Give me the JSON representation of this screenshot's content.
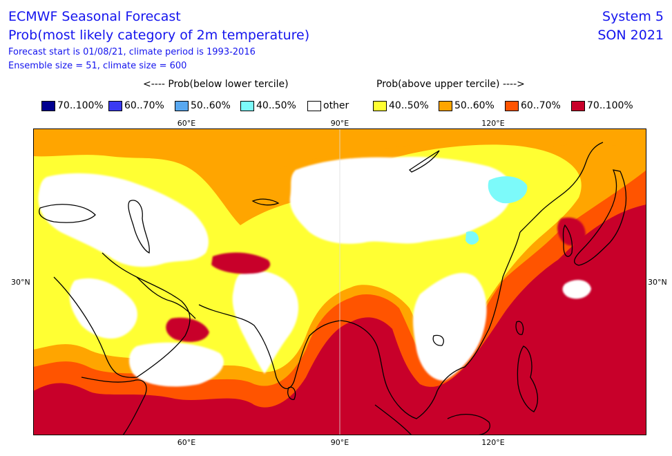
{
  "header": {
    "title": "ECMWF Seasonal Forecast",
    "subtitle": "Prob(most likely category of 2m temperature)",
    "forecast_info": "Forecast start is 01/08/21, climate period is 1993-2016",
    "ensemble_info": "Ensemble size = 51, climate size = 600",
    "system": "System 5",
    "season": "SON 2021"
  },
  "tercile_labels": {
    "below": "<---- Prob(below lower tercile)",
    "above": "Prob(above upper tercile) ---->"
  },
  "legend": [
    {
      "label": "70..100%",
      "color": "#00008f"
    },
    {
      "label": "60..70%",
      "color": "#3a3af2"
    },
    {
      "label": "50..60%",
      "color": "#59a8f0"
    },
    {
      "label": "40..50%",
      "color": "#7cfafa"
    },
    {
      "label": "other",
      "color": "#ffffff"
    },
    {
      "label": "40..50%",
      "color": "#ffff33"
    },
    {
      "label": "50..60%",
      "color": "#ffa500"
    },
    {
      "label": "60..70%",
      "color": "#ff5400"
    },
    {
      "label": "70..100%",
      "color": "#c8002a"
    }
  ],
  "axes": {
    "lon_labels": [
      "60°E",
      "90°E",
      "120°E"
    ],
    "lat_labels": [
      "30°N"
    ]
  },
  "map": {
    "lon_range": [
      30,
      150
    ],
    "lat_range": [
      0,
      60
    ],
    "central_meridian": 90
  }
}
